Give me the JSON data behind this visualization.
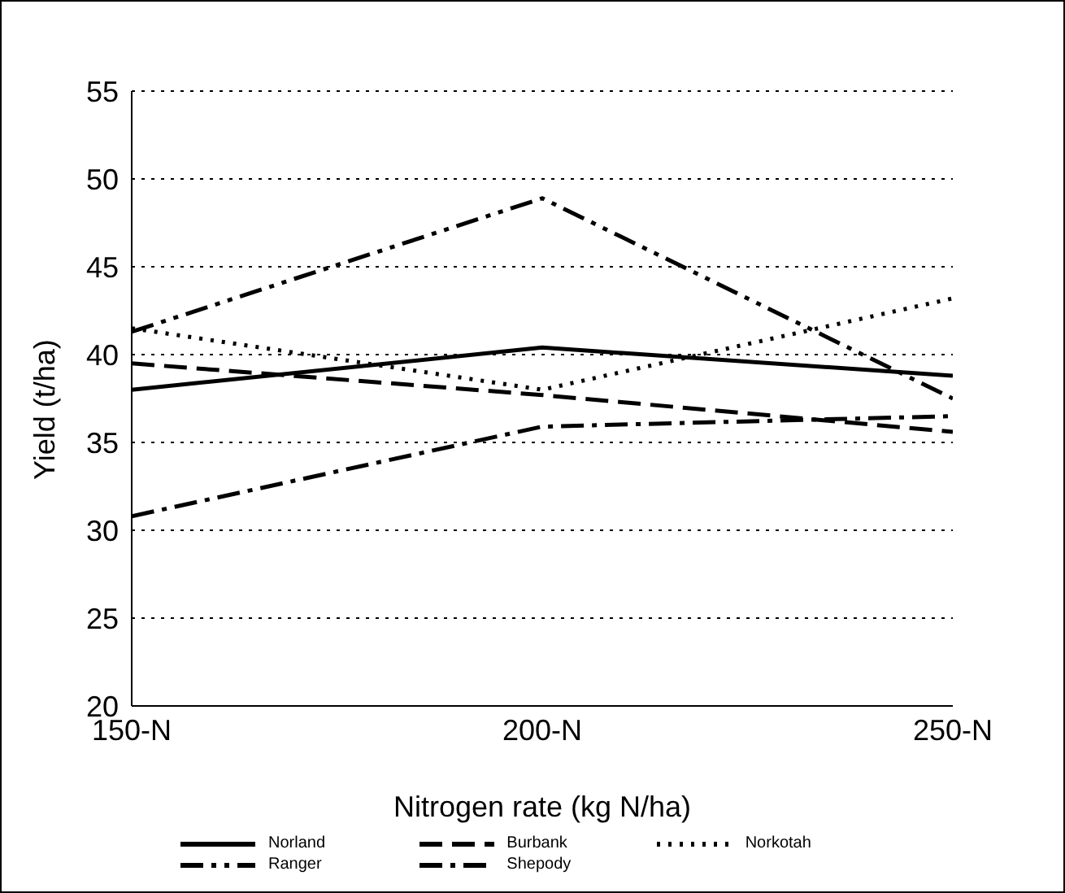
{
  "chart_data": {
    "type": "line",
    "xlabel": "Nitrogen rate (kg N/ha)",
    "ylabel": "Yield (t/ha)",
    "categories": [
      "150-N",
      "200-N",
      "250-N"
    ],
    "series": [
      {
        "name": "Norland",
        "color": "#000000",
        "line_style": "solid",
        "values": [
          38,
          40.4,
          38.8
        ]
      },
      {
        "name": "Burbank",
        "color": "#000000",
        "line_style": "dashed",
        "values": [
          39.5,
          37.7,
          35.6
        ]
      },
      {
        "name": "Norkotah",
        "color": "#000000",
        "line_style": "dotted",
        "values": [
          41.5,
          38,
          43.2
        ]
      },
      {
        "name": "Ranger",
        "color": "#000000",
        "line_style": "dashed",
        "values": [
          41.3,
          48.9,
          37.5
        ]
      },
      {
        "name": "Shepody",
        "color": "#000000",
        "line_style": "dashed",
        "values": [
          30.8,
          35.9,
          36.5
        ]
      }
    ],
    "ylim": [
      20,
      55
    ],
    "yticks": [
      20,
      25,
      30,
      35,
      40,
      45,
      50,
      55
    ],
    "grid": "y",
    "legend": "bottom",
    "marker": "none"
  }
}
